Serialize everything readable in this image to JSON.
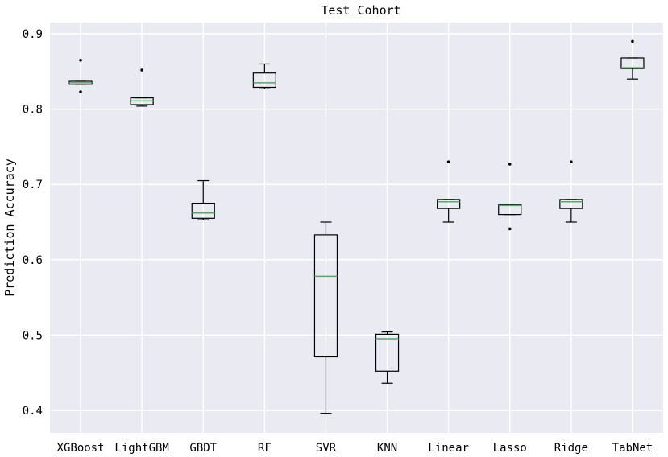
{
  "chart_data": {
    "type": "box",
    "title": "Test Cohort",
    "xlabel": "",
    "ylabel": "Prediction Accuracy",
    "ylim": [
      0.37,
      0.915
    ],
    "yticks": [
      0.4,
      0.5,
      0.6,
      0.7,
      0.8,
      0.9
    ],
    "ytick_labels": [
      "0.4",
      "0.5",
      "0.6",
      "0.7",
      "0.8",
      "0.9"
    ],
    "grid": true,
    "colors": {
      "background": "#eaeaf2",
      "grid": "#ffffff",
      "box": "#000000",
      "median": "#55a868",
      "outlier": "#000000"
    },
    "categories": [
      "XGBoost",
      "LightGBM",
      "GBDT",
      "RF",
      "SVR",
      "KNN",
      "Linear",
      "Lasso",
      "Ridge",
      "TabNet"
    ],
    "boxes": [
      {
        "min": 0.833,
        "q1": 0.833,
        "median": 0.835,
        "q3": 0.837,
        "max": 0.837,
        "outliers": [
          0.865,
          0.823
        ]
      },
      {
        "min": 0.804,
        "q1": 0.806,
        "median": 0.811,
        "q3": 0.815,
        "max": 0.815,
        "outliers": [
          0.852
        ]
      },
      {
        "min": 0.653,
        "q1": 0.655,
        "median": 0.662,
        "q3": 0.675,
        "max": 0.705,
        "outliers": []
      },
      {
        "min": 0.827,
        "q1": 0.829,
        "median": 0.835,
        "q3": 0.848,
        "max": 0.86,
        "outliers": []
      },
      {
        "min": 0.396,
        "q1": 0.471,
        "median": 0.578,
        "q3": 0.633,
        "max": 0.65,
        "outliers": []
      },
      {
        "min": 0.436,
        "q1": 0.452,
        "median": 0.495,
        "q3": 0.501,
        "max": 0.504,
        "outliers": []
      },
      {
        "min": 0.65,
        "q1": 0.668,
        "median": 0.677,
        "q3": 0.68,
        "max": 0.68,
        "outliers": [
          0.73
        ]
      },
      {
        "min": 0.66,
        "q1": 0.66,
        "median": 0.672,
        "q3": 0.673,
        "max": 0.673,
        "outliers": [
          0.727,
          0.641
        ]
      },
      {
        "min": 0.65,
        "q1": 0.668,
        "median": 0.677,
        "q3": 0.68,
        "max": 0.68,
        "outliers": [
          0.73
        ]
      },
      {
        "min": 0.84,
        "q1": 0.854,
        "median": 0.855,
        "q3": 0.868,
        "max": 0.868,
        "outliers": [
          0.89
        ]
      }
    ]
  }
}
